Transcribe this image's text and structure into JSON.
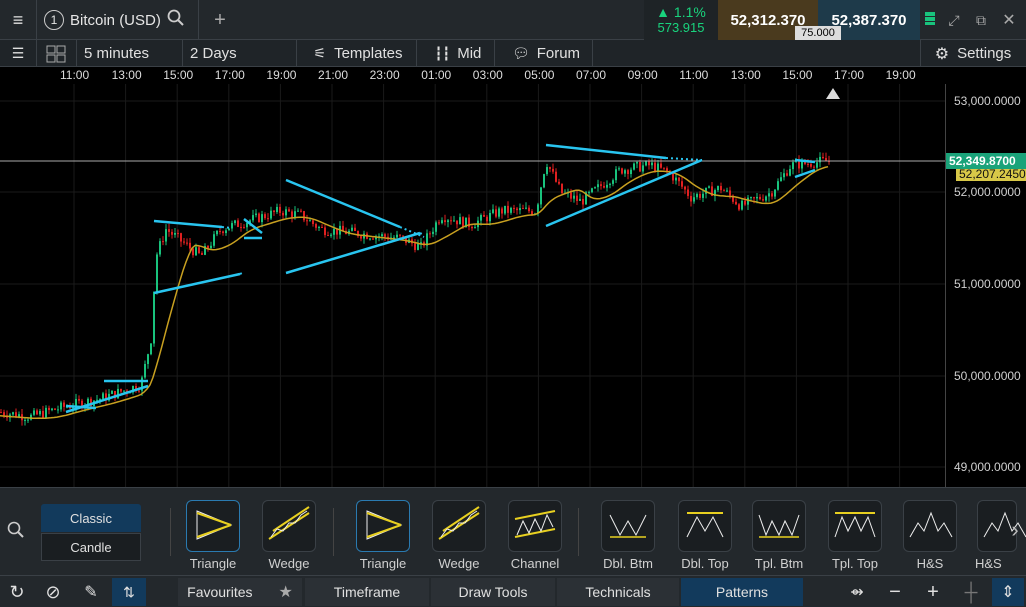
{
  "header": {
    "instrument_number": "1",
    "title": "Bitcoin (USD)",
    "change_pct": "1.1%",
    "change_abs": "573.915",
    "sell_price": "52,312.370",
    "buy_price": "52,387.370",
    "spread": "75.000"
  },
  "toolbar": {
    "timeframe": "5 minutes",
    "range": "2 Days",
    "templates": "Templates",
    "mid": "Mid",
    "forum": "Forum",
    "settings": "Settings"
  },
  "timeline": [
    "11:00",
    "13:00",
    "15:00",
    "17:00",
    "19:00",
    "21:00",
    "23:00",
    "01:00",
    "03:00",
    "05:00",
    "07:00",
    "09:00",
    "11:00",
    "13:00",
    "15:00",
    "17:00",
    "19:00"
  ],
  "price_axis": {
    "labels": [
      "53,000.0000",
      "52,000.0000",
      "51,000.0000",
      "50,000.0000",
      "49,000.0000"
    ],
    "current_price": "52,349.8700",
    "secondary_price": "52,207.2450"
  },
  "chart_type": {
    "classic": "Classic",
    "candle": "Candle"
  },
  "patterns": [
    "Triangle",
    "Wedge",
    "Triangle",
    "Wedge",
    "Channel",
    "Dbl. Btm",
    "Dbl. Top",
    "Tpl. Btm",
    "Tpl. Top",
    "H&S",
    "H&S"
  ],
  "tabs": {
    "favourites": "Favourites",
    "timeframe": "Timeframe",
    "draw_tools": "Draw Tools",
    "technicals": "Technicals",
    "patterns": "Patterns"
  },
  "colors": {
    "up": "#19c37d",
    "down": "#e02020",
    "ma": "#c8a020",
    "pattern": "#29c5f0",
    "accent": "#1aa37a"
  }
}
